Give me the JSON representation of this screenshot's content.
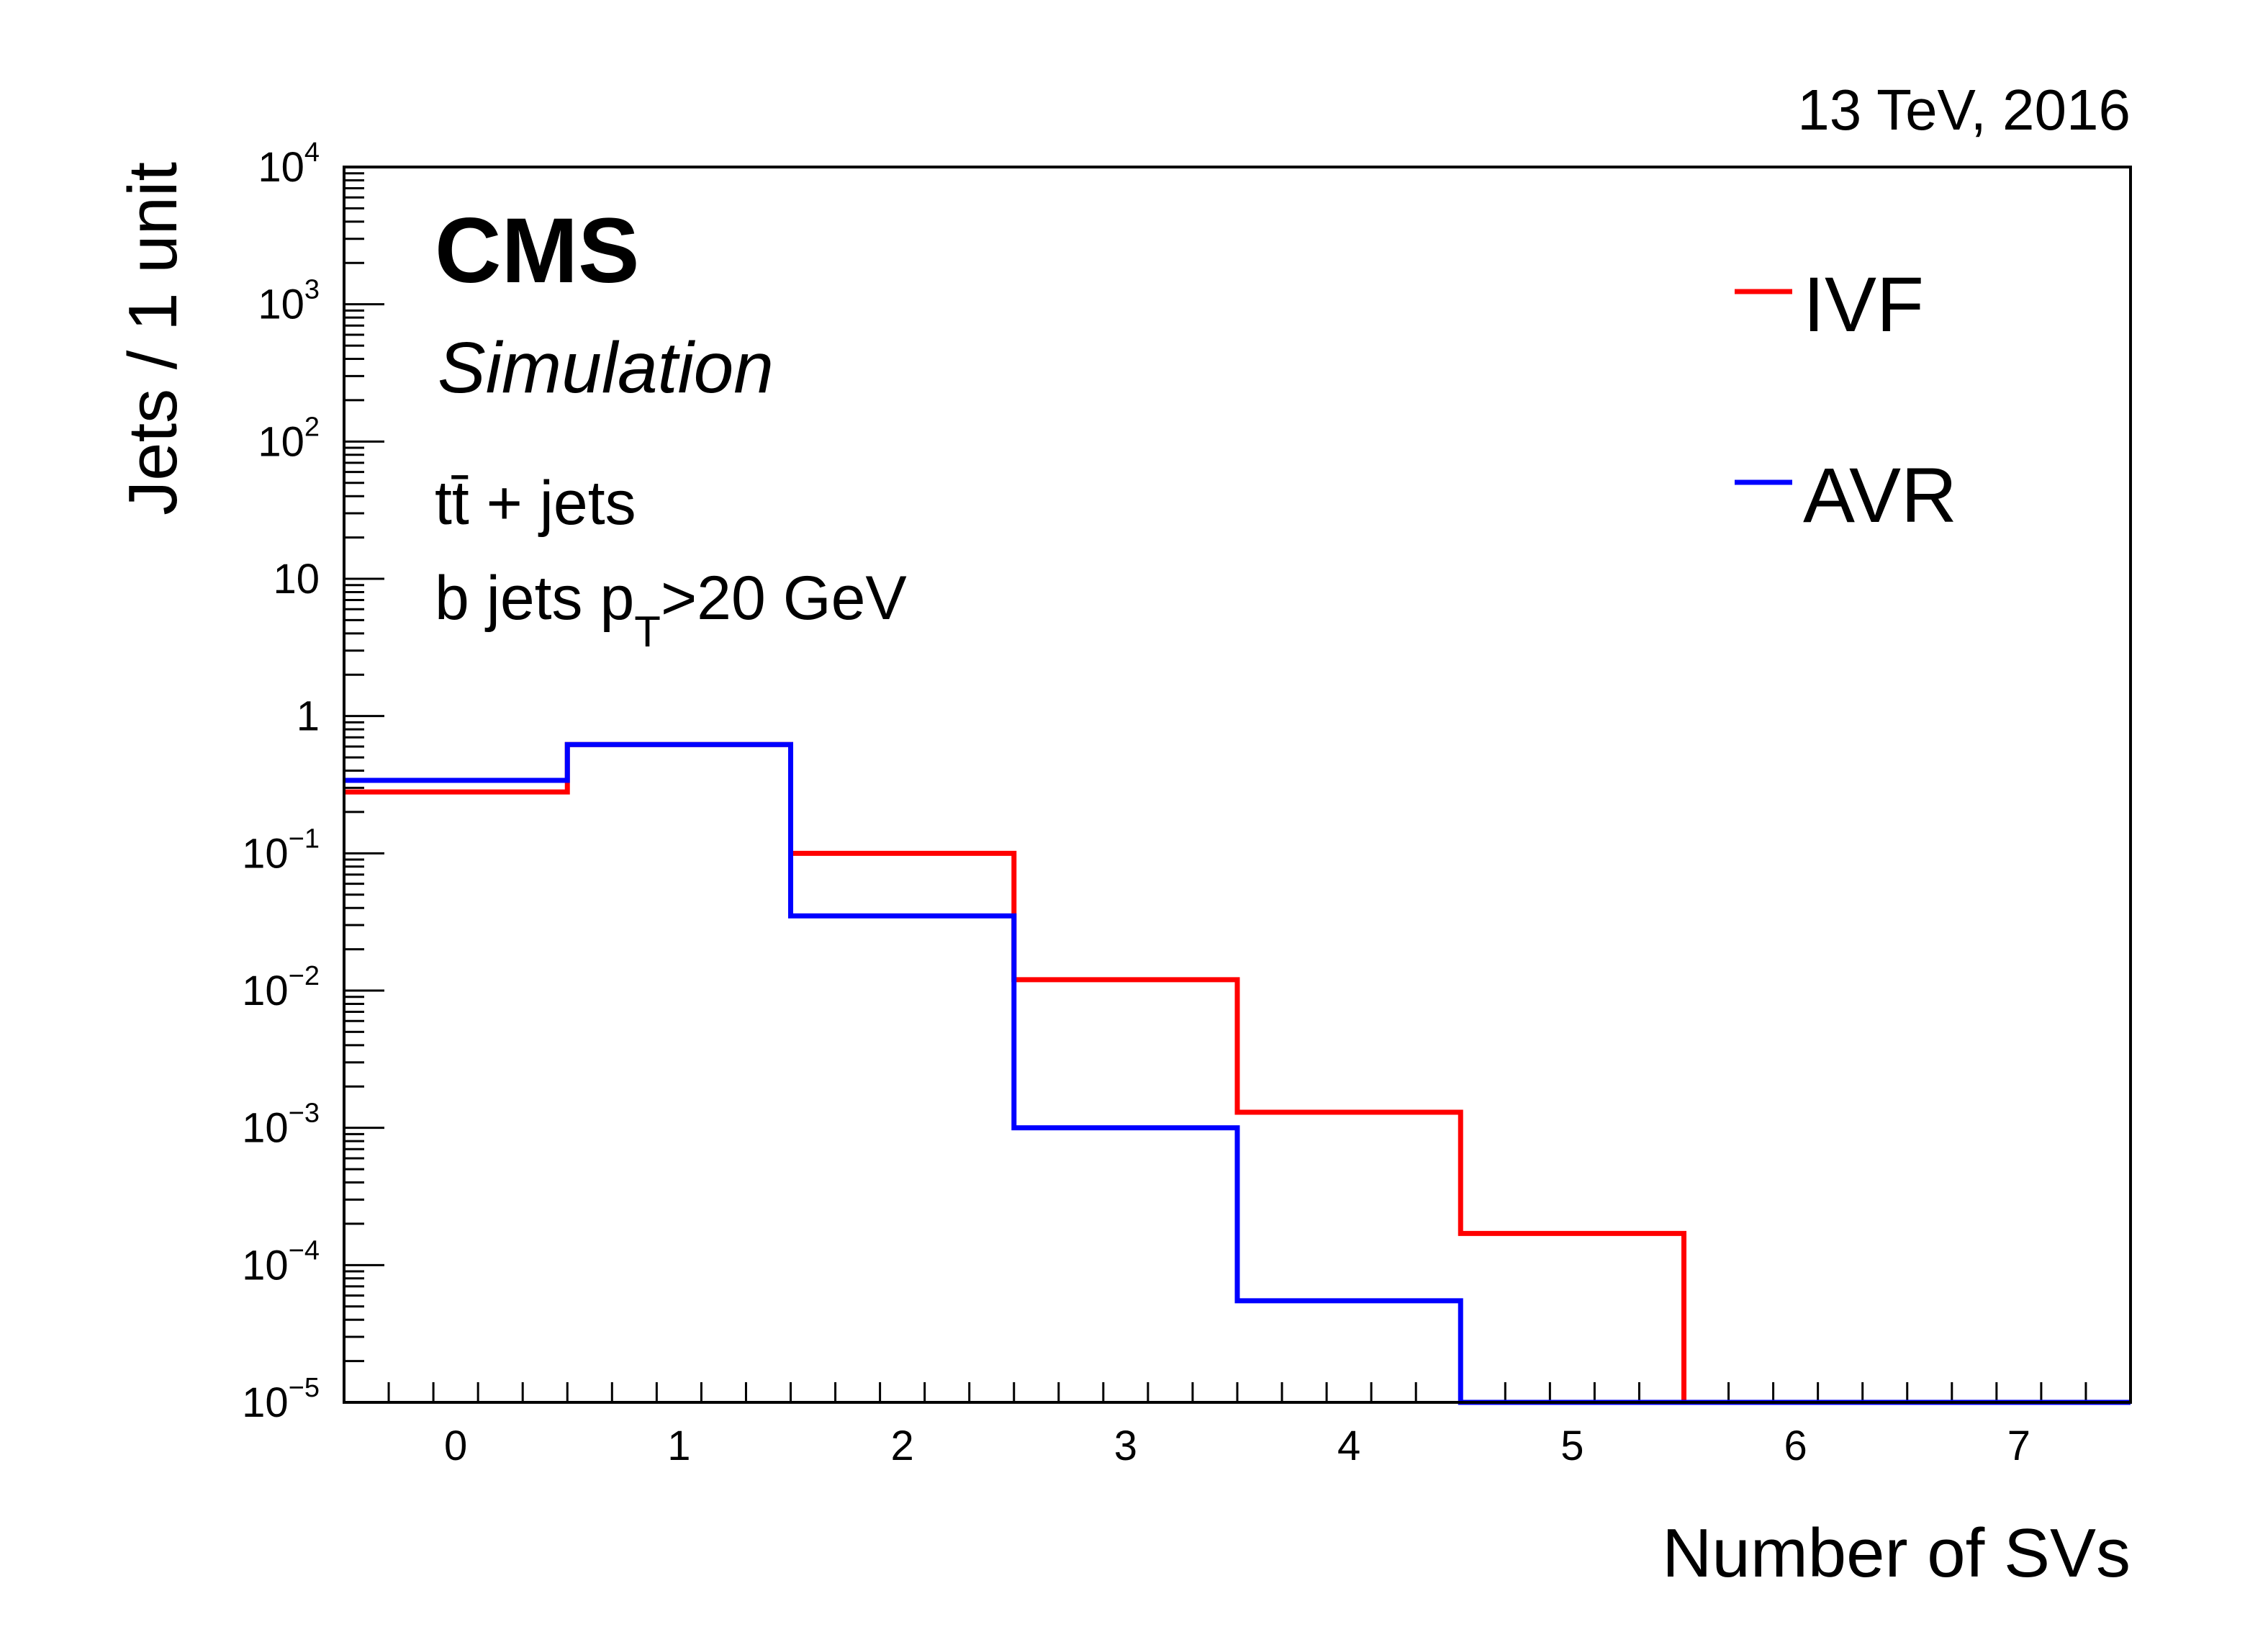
{
  "chart_data": {
    "type": "step-histogram",
    "energy_label": "13 TeV, 2016",
    "experiment": "CMS",
    "subtitle": "Simulation",
    "annotations": [
      "tt̄ + jets",
      "b jets p",
      "T",
      ">20 GeV"
    ],
    "xlabel": "Number of SVs",
    "ylabel": "Jets / 1 unit",
    "xlim": [
      -0.5,
      7.5
    ],
    "ylim": [
      1e-05,
      10000
    ],
    "yscale": "log",
    "xticks": [
      "0",
      "1",
      "2",
      "3",
      "4",
      "5",
      "6",
      "7"
    ],
    "yticks": [
      {
        "base": "10",
        "exp": "4"
      },
      {
        "base": "10",
        "exp": "3"
      },
      {
        "base": "10",
        "exp": "2"
      },
      {
        "base": "10",
        "exp": ""
      },
      {
        "base": "1",
        "exp": ""
      },
      {
        "base": "10",
        "exp": "−1"
      },
      {
        "base": "10",
        "exp": "−2"
      },
      {
        "base": "10",
        "exp": "−3"
      },
      {
        "base": "10",
        "exp": "−4"
      },
      {
        "base": "10",
        "exp": "−5"
      }
    ],
    "legend_position": "top-right",
    "bin_edges": [
      -0.5,
      0.5,
      1.5,
      2.5,
      3.5,
      4.5,
      5.5,
      6.5,
      7.5
    ],
    "series": [
      {
        "name": "IVF",
        "color": "#ff0000",
        "values": [
          0.28,
          0.62,
          0.1,
          0.012,
          0.0013,
          0.00017,
          0,
          0
        ]
      },
      {
        "name": "AVR",
        "color": "#0000ff",
        "values": [
          0.34,
          0.62,
          0.035,
          0.001,
          5.5e-05,
          0,
          0,
          0
        ]
      }
    ]
  }
}
